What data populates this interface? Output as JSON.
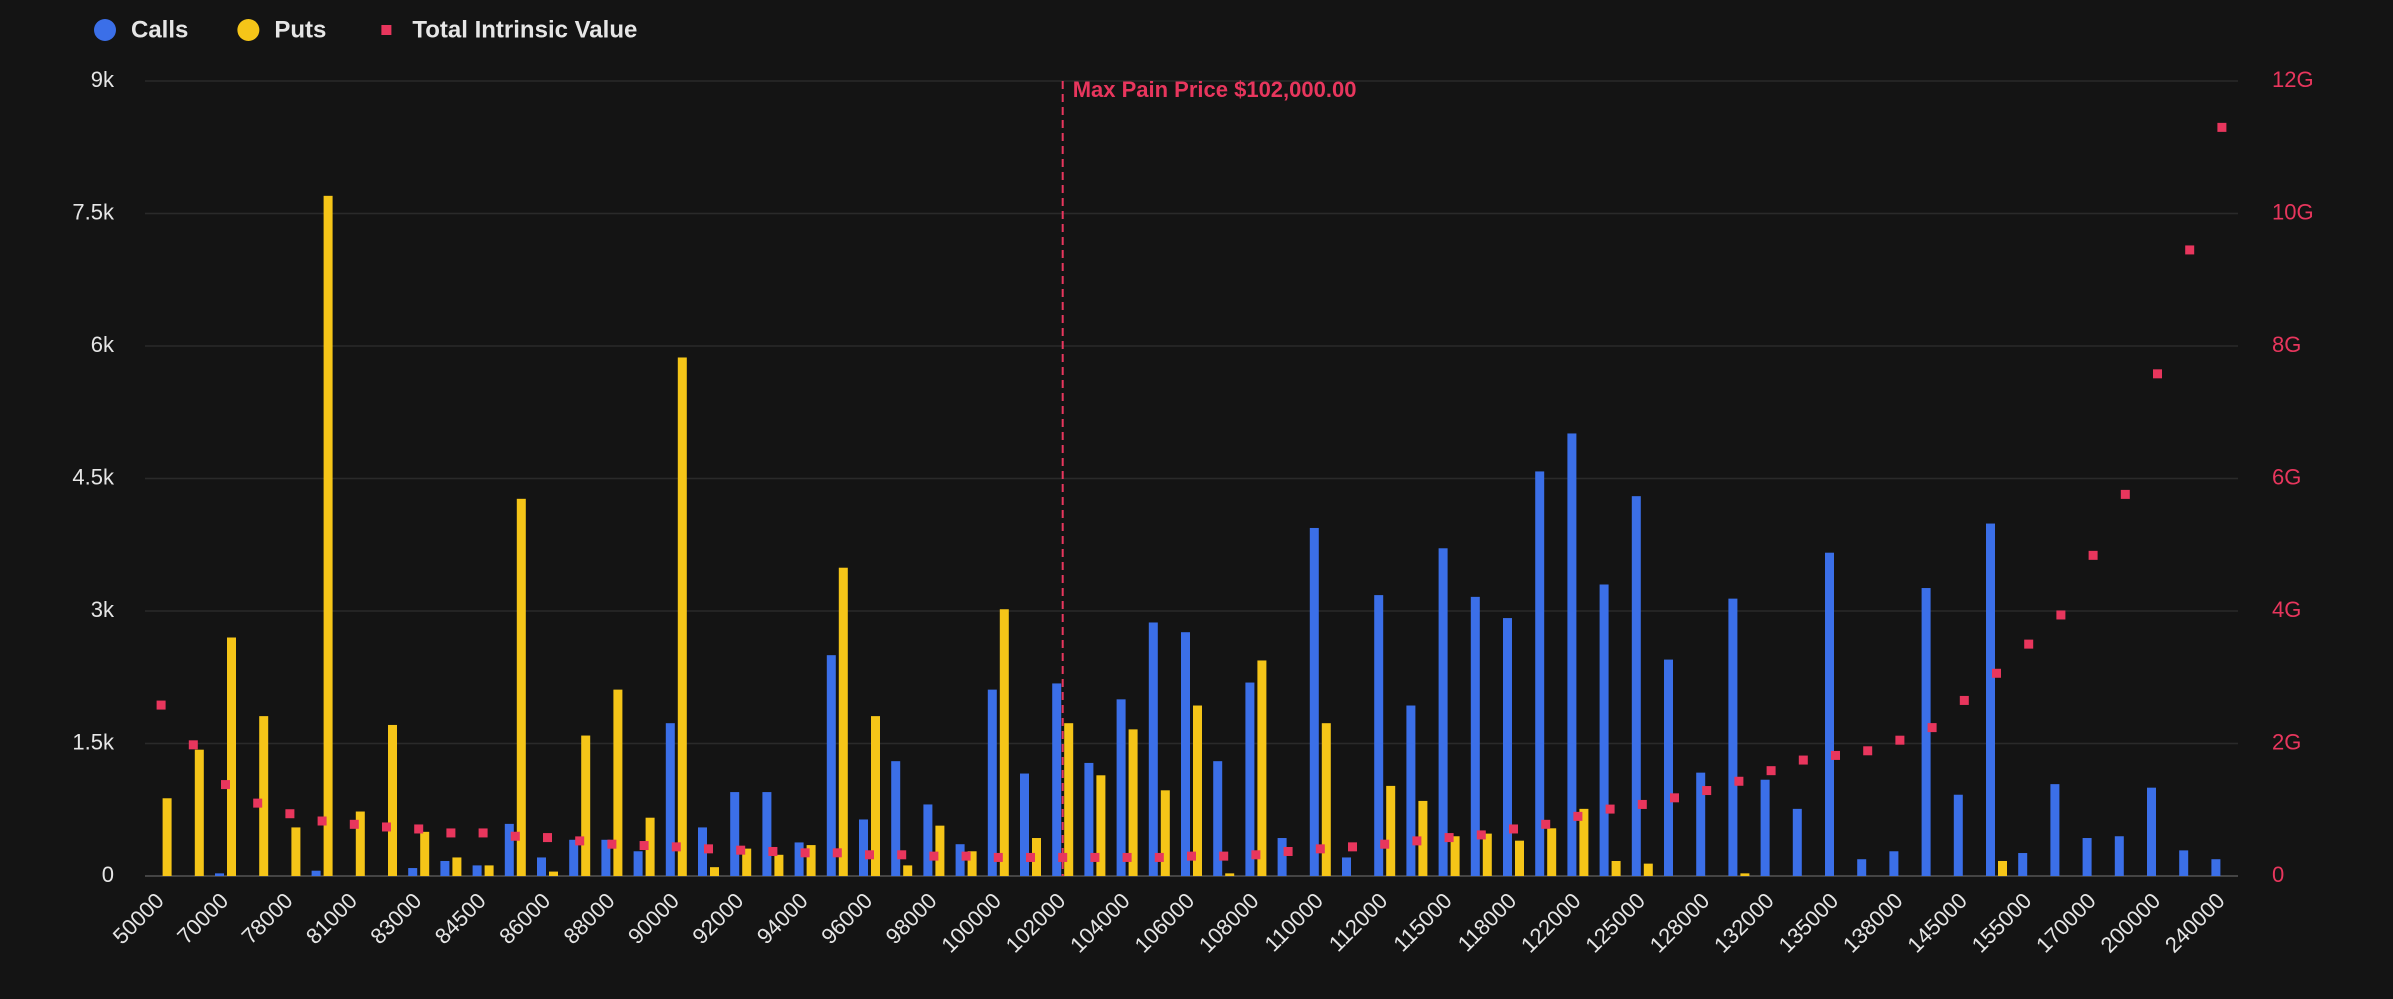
{
  "chart_data": {
    "type": "bar",
    "categories": [
      "50000",
      null,
      "70000",
      null,
      "78000",
      null,
      "81000",
      null,
      "83000",
      null,
      "84500",
      null,
      "86000",
      null,
      "88000",
      null,
      "90000",
      null,
      "92000",
      null,
      "94000",
      null,
      "96000",
      null,
      "98000",
      null,
      "100000",
      null,
      "102000",
      null,
      "104000",
      null,
      "106000",
      null,
      "108000",
      null,
      "110000",
      null,
      "112000",
      null,
      "115000",
      null,
      "118000",
      null,
      "122000",
      null,
      "125000",
      null,
      "128000",
      null,
      "132000",
      null,
      "135000",
      null,
      "138000",
      null,
      "145000",
      null,
      "155000",
      null,
      "170000",
      null,
      "200000",
      null,
      "240000"
    ],
    "series": [
      {
        "name": "Calls",
        "color": "#3b6fe8",
        "values": [
          0,
          0,
          30,
          0,
          0,
          60,
          0,
          0,
          90,
          170,
          120,
          590,
          210,
          410,
          410,
          280,
          1730,
          550,
          950,
          950,
          380,
          2500,
          640,
          1300,
          810,
          360,
          2110,
          1160,
          2180,
          1280,
          2000,
          2870,
          2760,
          1300,
          2190,
          430,
          3940,
          210,
          3180,
          1930,
          3710,
          3160,
          2920,
          4580,
          5010,
          3300,
          4300,
          2450,
          1170,
          3140,
          1090,
          760,
          3660,
          190,
          280,
          3260,
          920,
          3990,
          260,
          1040,
          430,
          450,
          1000,
          290,
          190
        ]
      },
      {
        "name": "Puts",
        "color": "#f5c518",
        "values": [
          880,
          1430,
          2700,
          1810,
          550,
          7700,
          730,
          1710,
          500,
          210,
          120,
          4270,
          50,
          1590,
          2110,
          660,
          5870,
          100,
          310,
          240,
          350,
          3490,
          1810,
          120,
          570,
          280,
          3020,
          430,
          1730,
          1140,
          1660,
          970,
          1930,
          30,
          2440,
          0,
          1730,
          0,
          1020,
          850,
          450,
          480,
          400,
          540,
          760,
          170,
          140,
          0,
          0,
          30,
          0,
          0,
          0,
          0,
          0,
          0,
          0,
          170,
          0,
          0,
          0,
          0,
          0,
          0,
          0
        ]
      },
      {
        "name": "Total Intrinsic Value",
        "color": "#e8365d",
        "axis": "y2",
        "marker": "square",
        "values": [
          2580000000,
          1980000000,
          1380000000,
          1100000000,
          940000000,
          830000000,
          780000000,
          740000000,
          710000000,
          650000000,
          650000000,
          600000000,
          580000000,
          530000000,
          480000000,
          460000000,
          440000000,
          410000000,
          390000000,
          370000000,
          350000000,
          350000000,
          320000000,
          320000000,
          300000000,
          300000000,
          280000000,
          280000000,
          280000000,
          280000000,
          280000000,
          280000000,
          300000000,
          300000000,
          320000000,
          370000000,
          410000000,
          440000000,
          480000000,
          530000000,
          580000000,
          620000000,
          710000000,
          780000000,
          900000000,
          1010000000,
          1080000000,
          1180000000,
          1290000000,
          1430000000,
          1590000000,
          1750000000,
          1820000000,
          1890000000,
          2050000000,
          2240000000,
          2650000000,
          3060000000,
          3500000000,
          3940000000,
          4840000000,
          5760000000,
          7580000000,
          9450000000,
          11300000000
        ]
      }
    ],
    "ylim": [
      0,
      9000
    ],
    "yticks": [
      0,
      {
        "value": 1500,
        "label": "1.5k"
      },
      {
        "value": 3000,
        "label": "3k"
      },
      {
        "value": 4500,
        "label": "4.5k"
      },
      {
        "value": 6000,
        "label": "6k"
      },
      {
        "value": 7500,
        "label": "7.5k"
      },
      {
        "value": 9000,
        "label": "9k"
      }
    ],
    "y2lim": [
      0,
      12000000000
    ],
    "y2ticks": [
      0,
      {
        "value": 2000000000,
        "label": "2G"
      },
      {
        "value": 4000000000,
        "label": "4G"
      },
      {
        "value": 6000000000,
        "label": "6G"
      },
      {
        "value": 8000000000,
        "label": "8G"
      },
      {
        "value": 10000000000,
        "label": "10G"
      },
      {
        "value": 12000000000,
        "label": "12G"
      }
    ],
    "grid": true,
    "legend": "top-left",
    "annotation": {
      "text": "Max Pain Price $102,000.00",
      "category": "102000",
      "color": "#e8365d"
    }
  }
}
